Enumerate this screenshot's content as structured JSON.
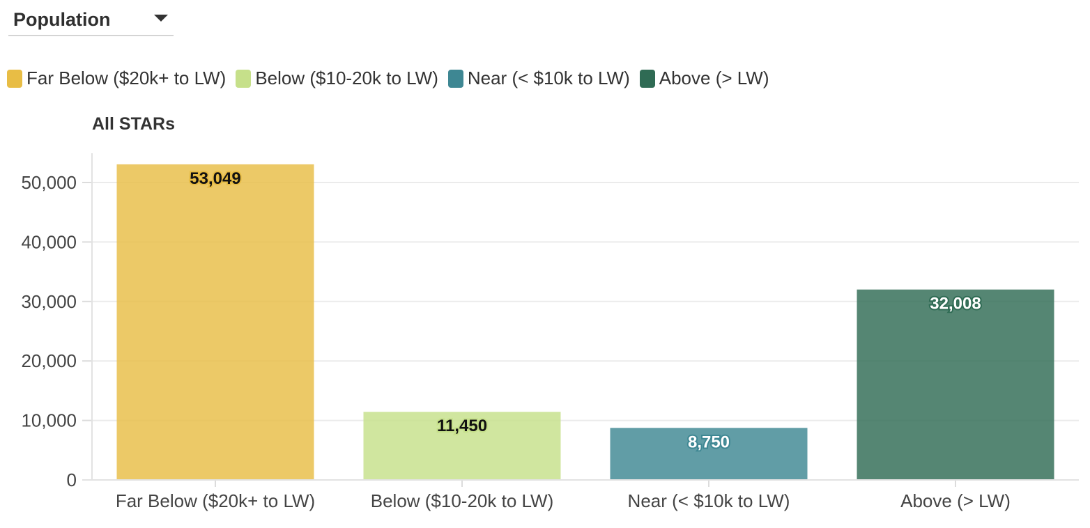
{
  "dropdown": {
    "label": "Population"
  },
  "legend": [
    {
      "label": "Far Below ($20k+ to LW)",
      "color": "#e8bd45"
    },
    {
      "label": "Below ($10-20k to LW)",
      "color": "#c6e08a"
    },
    {
      "label": "Near (< $10k to LW)",
      "color": "#3e8793"
    },
    {
      "label": "Above (> LW)",
      "color": "#2f6b54"
    }
  ],
  "chart_data": {
    "type": "bar",
    "title": "All STARs",
    "categories": [
      "Far Below ($20k+ to LW)",
      "Below ($10-20k to LW)",
      "Near (< $10k to LW)",
      "Above (> LW)"
    ],
    "values": [
      53049,
      11450,
      8750,
      32008
    ],
    "value_labels": [
      "53,049",
      "11,450",
      "8,750",
      "32,008"
    ],
    "colors": [
      "#e8bd45",
      "#c6e08a",
      "#3e8793",
      "#2f6b54"
    ],
    "ylim": [
      0,
      55000
    ],
    "yticks": [
      0,
      10000,
      20000,
      30000,
      40000,
      50000
    ],
    "ytick_labels": [
      "0",
      "10,000",
      "20,000",
      "30,000",
      "40,000",
      "50,000"
    ],
    "grid": true,
    "legend_position": "top-left"
  }
}
